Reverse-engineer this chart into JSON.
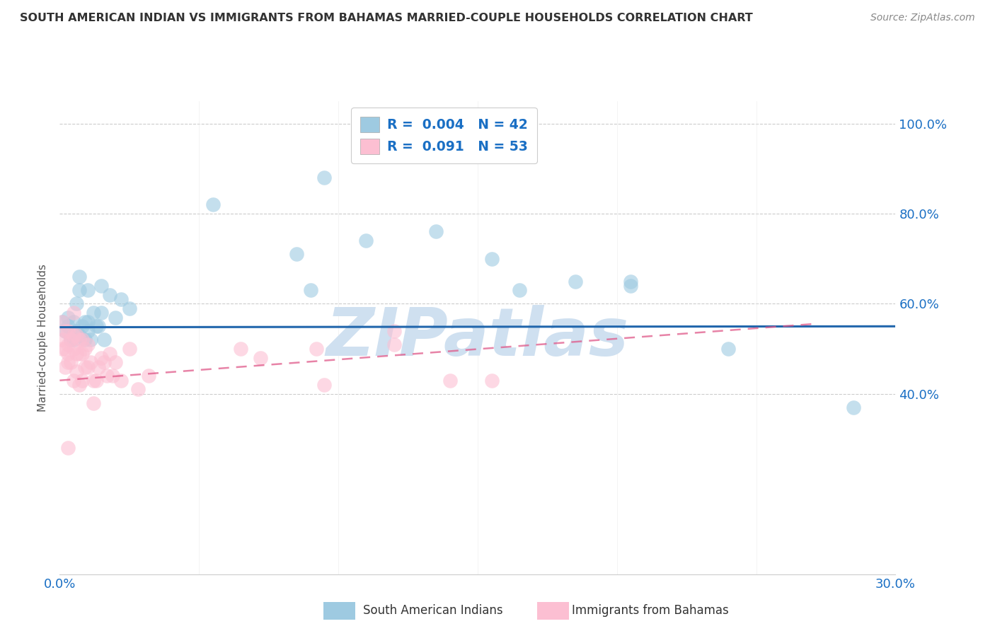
{
  "title": "SOUTH AMERICAN INDIAN VS IMMIGRANTS FROM BAHAMAS MARRIED-COUPLE HOUSEHOLDS CORRELATION CHART",
  "source": "Source: ZipAtlas.com",
  "ylabel": "Married-couple Households",
  "watermark": "ZIPatlas",
  "legend1_label": "South American Indians",
  "legend2_label": "Immigrants from Bahamas",
  "R1": "0.004",
  "N1": "42",
  "R2": "0.091",
  "N2": "53",
  "xlim": [
    0.0,
    0.3
  ],
  "ylim": [
    0.0,
    1.05
  ],
  "yticks": [
    0.4,
    0.6,
    0.8,
    1.0
  ],
  "ytick_labels": [
    "40.0%",
    "60.0%",
    "80.0%",
    "100.0%"
  ],
  "xtick_positions": [
    0.0,
    0.05,
    0.1,
    0.15,
    0.2,
    0.25,
    0.3
  ],
  "color_blue": "#9ecae1",
  "color_blue_edge": "#9ecae1",
  "color_pink": "#fcbfd2",
  "color_pink_edge": "#fcbfd2",
  "color_blue_line": "#2166ac",
  "color_pink_line": "#e05a8a",
  "color_title": "#333333",
  "color_source": "#888888",
  "color_watermark": "#cfe0f0",
  "color_legend_text": "#1a6fc4",
  "background_color": "#ffffff",
  "grid_color": "#cccccc",
  "blue_x": [
    0.001,
    0.002,
    0.003,
    0.003,
    0.004,
    0.005,
    0.005,
    0.006,
    0.006,
    0.007,
    0.007,
    0.007,
    0.008,
    0.009,
    0.009,
    0.01,
    0.01,
    0.01,
    0.011,
    0.012,
    0.013,
    0.014,
    0.015,
    0.015,
    0.016,
    0.018,
    0.02,
    0.022,
    0.025,
    0.055,
    0.085,
    0.09,
    0.095,
    0.11,
    0.135,
    0.155,
    0.165,
    0.185,
    0.205,
    0.205,
    0.24,
    0.285
  ],
  "blue_y": [
    0.56,
    0.54,
    0.55,
    0.57,
    0.52,
    0.56,
    0.52,
    0.6,
    0.54,
    0.63,
    0.66,
    0.53,
    0.55,
    0.56,
    0.52,
    0.63,
    0.56,
    0.54,
    0.52,
    0.58,
    0.55,
    0.55,
    0.58,
    0.64,
    0.52,
    0.62,
    0.57,
    0.61,
    0.59,
    0.82,
    0.71,
    0.63,
    0.88,
    0.74,
    0.76,
    0.7,
    0.63,
    0.65,
    0.65,
    0.64,
    0.5,
    0.37
  ],
  "pink_x": [
    0.001,
    0.001,
    0.001,
    0.002,
    0.002,
    0.002,
    0.003,
    0.003,
    0.003,
    0.003,
    0.004,
    0.004,
    0.005,
    0.005,
    0.005,
    0.005,
    0.006,
    0.006,
    0.006,
    0.007,
    0.007,
    0.007,
    0.008,
    0.008,
    0.008,
    0.009,
    0.009,
    0.01,
    0.01,
    0.011,
    0.012,
    0.012,
    0.013,
    0.014,
    0.015,
    0.016,
    0.017,
    0.018,
    0.019,
    0.02,
    0.022,
    0.025,
    0.028,
    0.032,
    0.065,
    0.072,
    0.092,
    0.095,
    0.12,
    0.12,
    0.14,
    0.155,
    0.003
  ],
  "pink_y": [
    0.56,
    0.52,
    0.5,
    0.54,
    0.5,
    0.46,
    0.54,
    0.51,
    0.49,
    0.47,
    0.52,
    0.47,
    0.58,
    0.53,
    0.5,
    0.43,
    0.53,
    0.49,
    0.45,
    0.52,
    0.49,
    0.42,
    0.52,
    0.49,
    0.43,
    0.5,
    0.46,
    0.51,
    0.46,
    0.47,
    0.43,
    0.38,
    0.43,
    0.46,
    0.48,
    0.47,
    0.44,
    0.49,
    0.44,
    0.47,
    0.43,
    0.5,
    0.41,
    0.44,
    0.5,
    0.48,
    0.5,
    0.42,
    0.54,
    0.51,
    0.43,
    0.43,
    0.28
  ],
  "blue_line_x": [
    0.0,
    0.3
  ],
  "blue_line_y": [
    0.548,
    0.55
  ],
  "pink_line_x": [
    0.0,
    0.27
  ],
  "pink_line_y": [
    0.43,
    0.555
  ]
}
